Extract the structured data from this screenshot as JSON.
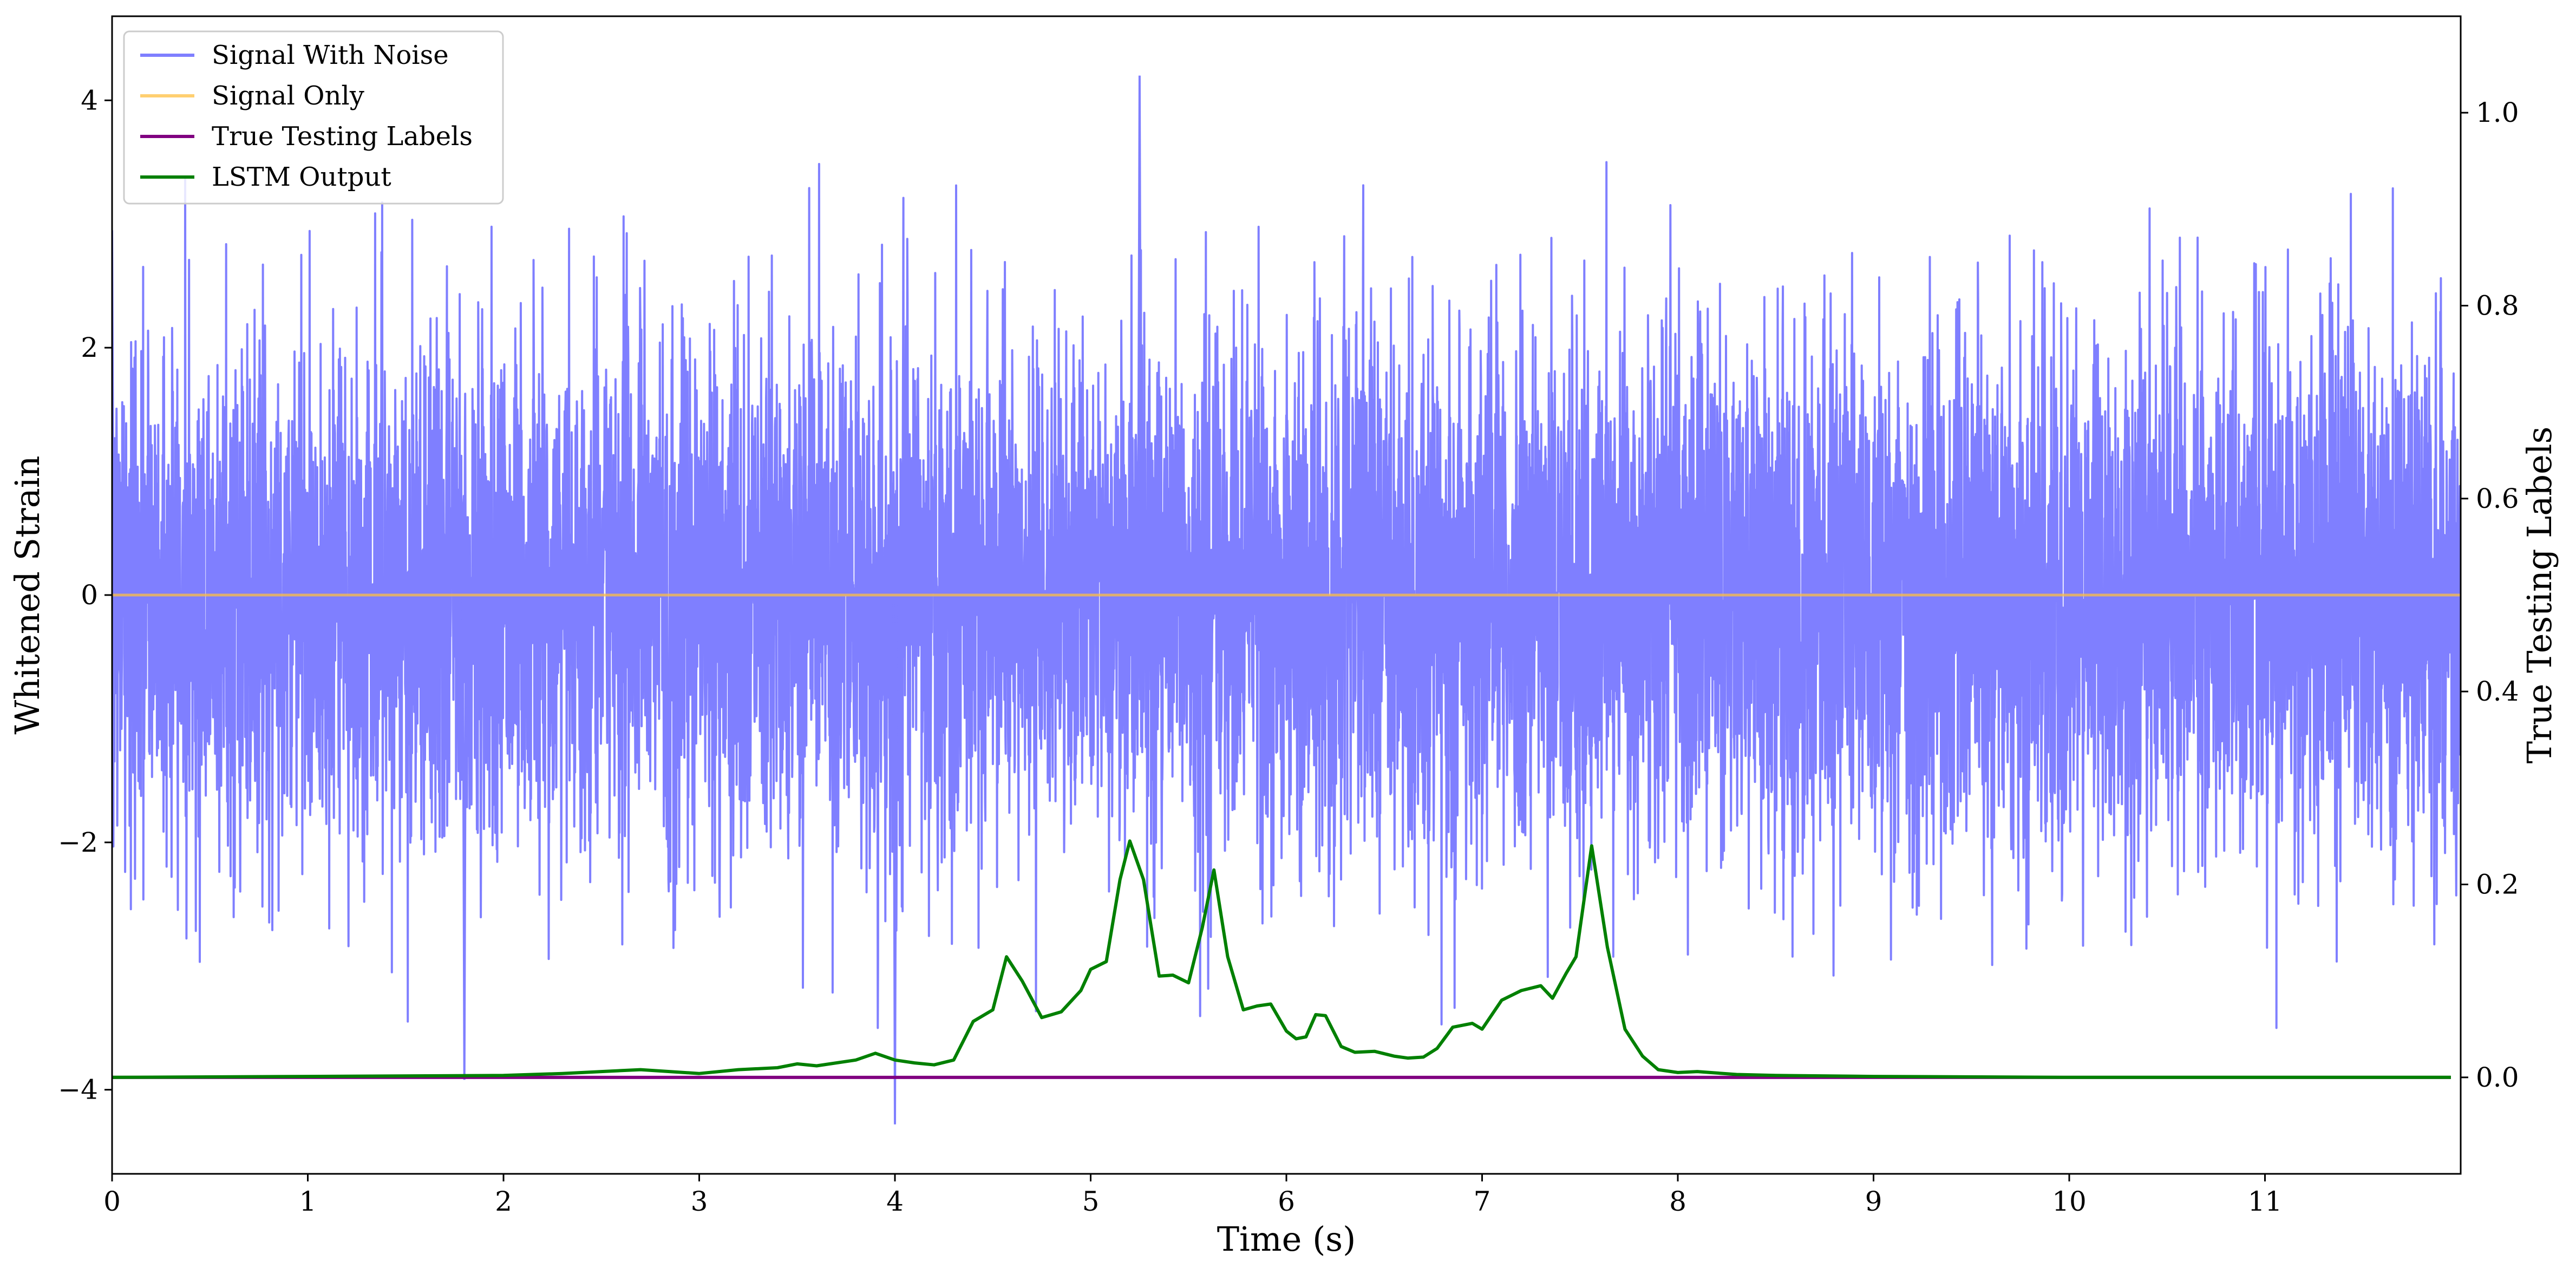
{
  "chart_data": {
    "type": "line",
    "xlabel": "Time (s)",
    "ylabel": "Whitened Strain",
    "y2label": "True Testing Labels",
    "xlim": [
      0,
      12
    ],
    "ylim": [
      -4.68,
      4.68
    ],
    "y2lim": [
      -0.1,
      1.1
    ],
    "xticks": [
      "0",
      "1",
      "2",
      "3",
      "4",
      "5",
      "6",
      "7",
      "8",
      "9",
      "10",
      "11"
    ],
    "yticks": [
      "−4",
      "−2",
      "0",
      "2",
      "4"
    ],
    "y2ticks": [
      "0.0",
      "0.2",
      "0.4",
      "0.6",
      "0.8",
      "1.0"
    ],
    "legend_position": "top-left",
    "series": [
      {
        "name": "Signal With Noise",
        "axis": "left",
        "color": "#7f7fff",
        "style": "dense noise, typical amplitude about ±1.2, peaks about ±4",
        "x": [
          0.0,
          1.8,
          4.0,
          5.25
        ],
        "y": [
          2.95,
          -3.92,
          -4.28,
          4.2
        ]
      },
      {
        "name": "Signal Only",
        "axis": "left",
        "color": "#ffbf40",
        "x": [
          0,
          12
        ],
        "y": [
          0.0,
          0.0
        ]
      },
      {
        "name": "True Testing Labels",
        "axis": "right",
        "color": "#800080",
        "x": [
          0,
          11.95
        ],
        "y": [
          0.0,
          0.0
        ]
      },
      {
        "name": "LSTM Output",
        "axis": "right",
        "color": "#008000",
        "x": [
          0,
          1.0,
          2.0,
          2.3,
          2.5,
          2.7,
          3.0,
          3.2,
          3.4,
          3.5,
          3.6,
          3.8,
          3.9,
          4.0,
          4.1,
          4.2,
          4.3,
          4.4,
          4.5,
          4.57,
          4.65,
          4.75,
          4.85,
          4.95,
          5.0,
          5.08,
          5.15,
          5.2,
          5.27,
          5.35,
          5.42,
          5.5,
          5.57,
          5.63,
          5.7,
          5.78,
          5.85,
          5.92,
          6.0,
          6.05,
          6.1,
          6.15,
          6.2,
          6.28,
          6.35,
          6.45,
          6.55,
          6.62,
          6.7,
          6.77,
          6.85,
          6.95,
          7.0,
          7.1,
          7.2,
          7.3,
          7.36,
          7.43,
          7.48,
          7.56,
          7.64,
          7.73,
          7.82,
          7.9,
          8.0,
          8.1,
          8.3,
          8.5,
          9.0,
          10.0,
          11.95
        ],
        "y": [
          0.0,
          0.001,
          0.002,
          0.004,
          0.006,
          0.008,
          0.004,
          0.008,
          0.01,
          0.014,
          0.012,
          0.018,
          0.025,
          0.018,
          0.015,
          0.013,
          0.018,
          0.058,
          0.07,
          0.125,
          0.1,
          0.062,
          0.068,
          0.09,
          0.112,
          0.12,
          0.205,
          0.245,
          0.205,
          0.105,
          0.106,
          0.098,
          0.155,
          0.215,
          0.125,
          0.07,
          0.074,
          0.076,
          0.048,
          0.04,
          0.042,
          0.065,
          0.064,
          0.032,
          0.026,
          0.027,
          0.022,
          0.02,
          0.021,
          0.03,
          0.052,
          0.056,
          0.05,
          0.08,
          0.09,
          0.095,
          0.082,
          0.108,
          0.125,
          0.24,
          0.135,
          0.05,
          0.022,
          0.008,
          0.005,
          0.006,
          0.003,
          0.002,
          0.001,
          0.0,
          0.0
        ]
      }
    ]
  }
}
